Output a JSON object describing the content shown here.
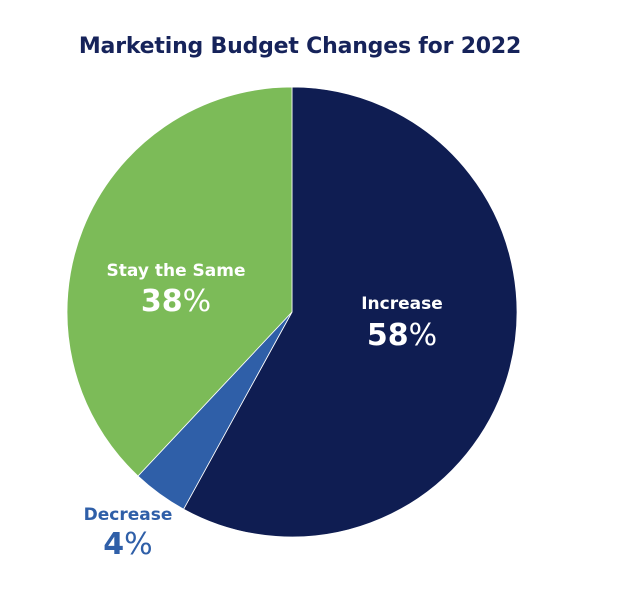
{
  "chart_data": {
    "type": "pie",
    "title": "Marketing Budget Changes for 2022",
    "slices": [
      {
        "label": "Increase",
        "value": 58,
        "value_text": "58",
        "unit": "%",
        "color": "#0f1d52",
        "label_color": "#ffffff"
      },
      {
        "label": "Decrease",
        "value": 4,
        "value_text": "4",
        "unit": "%",
        "color": "#2f5fa8",
        "label_color": "#2f5fa8"
      },
      {
        "label": "Stay the Same",
        "value": 38,
        "value_text": "38",
        "unit": "%",
        "color": "#7cbb58",
        "label_color": "#ffffff"
      }
    ],
    "start_angle_deg": 0,
    "direction": "clockwise"
  }
}
